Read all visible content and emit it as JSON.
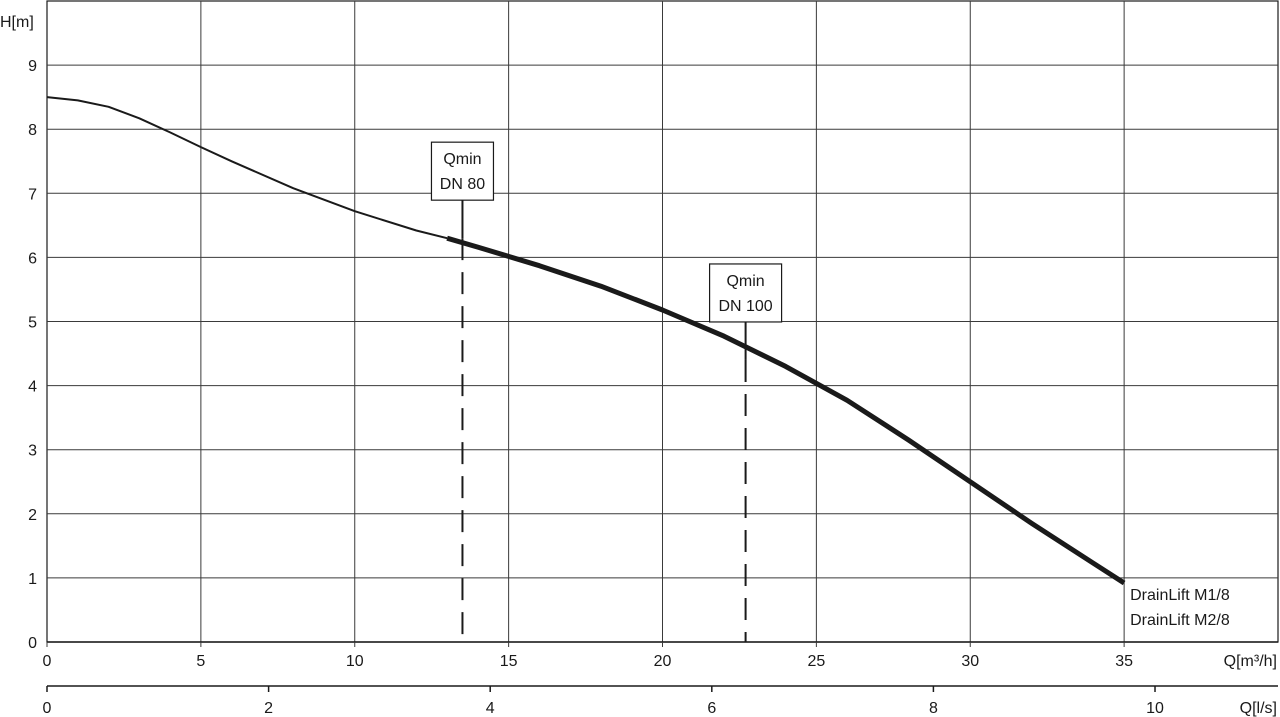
{
  "chart_data": {
    "type": "line",
    "title": "",
    "ylabel": "H[m]",
    "xlabel": "Q[m³/h]",
    "x2label": "Q[l/s]",
    "xlim": [
      0,
      40
    ],
    "ylim": [
      0,
      10
    ],
    "x2lim": [
      0,
      11.11
    ],
    "xticks": [
      0,
      5,
      10,
      15,
      20,
      25,
      30,
      35
    ],
    "yticks": [
      0,
      1,
      2,
      3,
      4,
      5,
      6,
      7,
      8,
      9
    ],
    "x2ticks": [
      0,
      2,
      4,
      6,
      8,
      10
    ],
    "grid": true,
    "curve_color": "#1a1a1a",
    "series": [
      {
        "labels": [
          "DrainLift M1/8",
          "DrainLift M2/8"
        ],
        "x": [
          0,
          1,
          2,
          3,
          4,
          5,
          6,
          8,
          10,
          12,
          13,
          14,
          16,
          18,
          20,
          22,
          24,
          26,
          28,
          30,
          32,
          34,
          35
        ],
        "y": [
          8.5,
          8.45,
          8.35,
          8.17,
          7.95,
          7.72,
          7.5,
          7.08,
          6.72,
          6.42,
          6.3,
          6.16,
          5.87,
          5.55,
          5.18,
          4.77,
          4.3,
          3.77,
          3.15,
          2.5,
          1.85,
          1.23,
          0.92
        ],
        "thin_until_x": 13,
        "end_x": 35
      }
    ],
    "annotations": [
      {
        "lines": [
          "Qmin",
          "DN 80"
        ],
        "x": 13.5,
        "y": 6.3
      },
      {
        "lines": [
          "Qmin",
          "DN 100"
        ],
        "x": 22.7,
        "y": 4.4
      }
    ]
  }
}
